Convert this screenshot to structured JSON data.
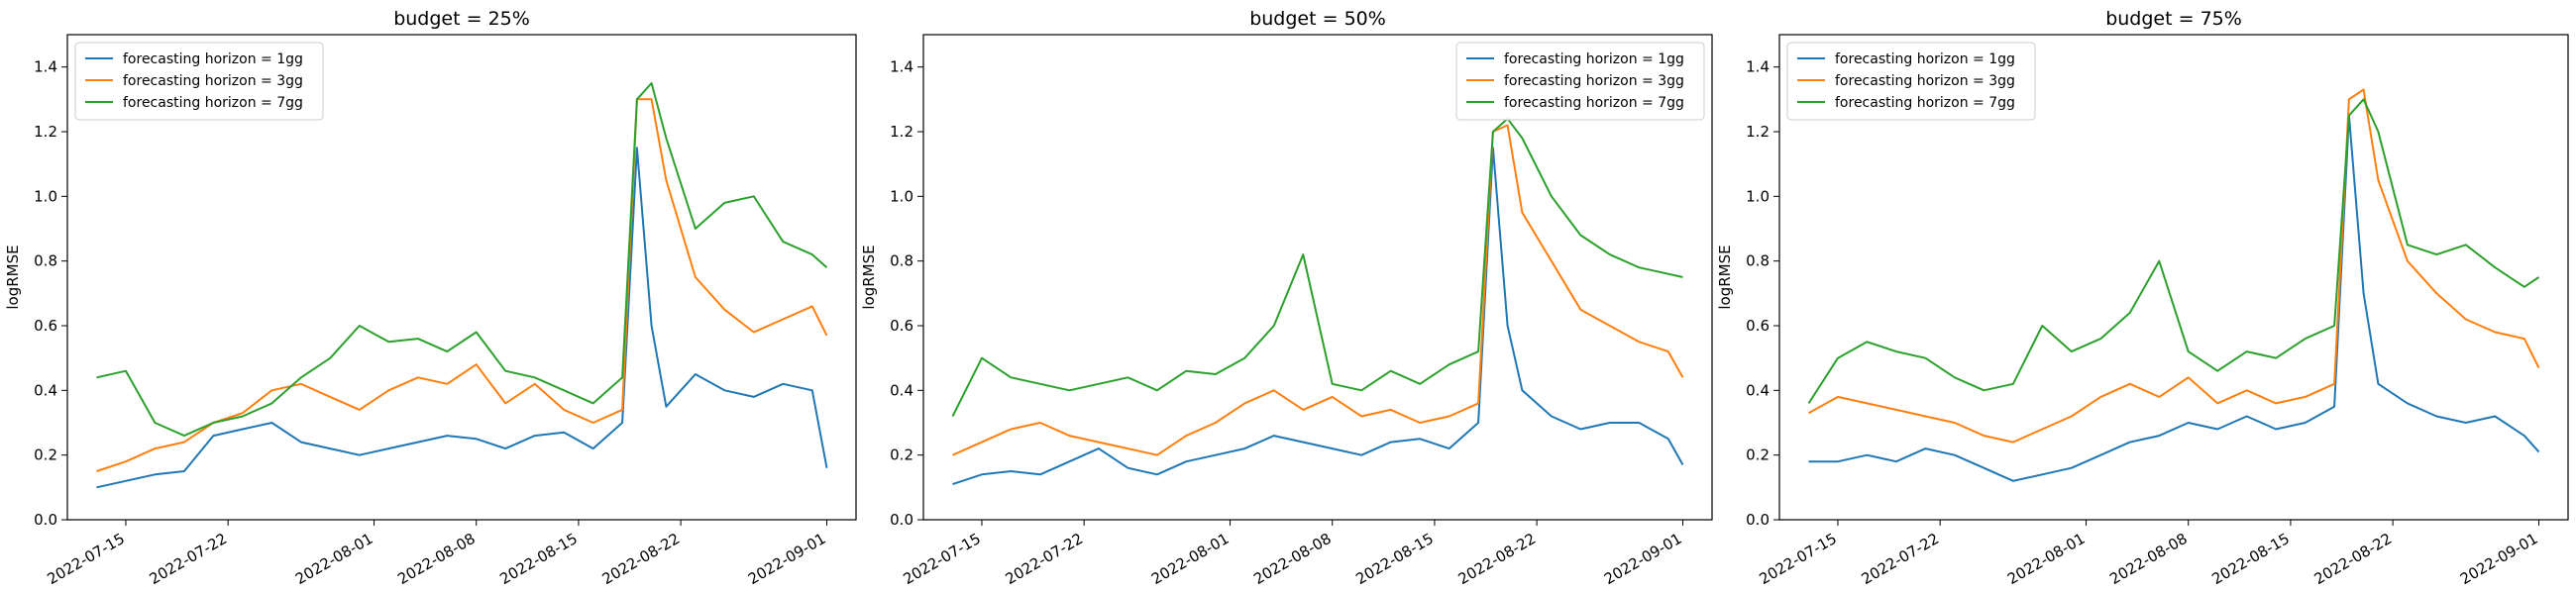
{
  "chart_data": [
    {
      "type": "line",
      "title": "budget = 25%",
      "xlabel": "",
      "ylabel": "logRMSE",
      "xlim": [
        "2022-07-11",
        "2022-09-03"
      ],
      "ylim": [
        0.0,
        1.5
      ],
      "yticks": [
        0.0,
        0.2,
        0.4,
        0.6,
        0.8,
        1.0,
        1.2,
        1.4
      ],
      "xticks": [
        "2022-07-15",
        "2022-07-22",
        "2022-08-01",
        "2022-08-08",
        "2022-08-15",
        "2022-08-22",
        "2022-09-01"
      ],
      "grid": false,
      "legend_position": "top-left",
      "series": [
        {
          "name": "forecasting horizon = 1gg",
          "color": "#1f77b4",
          "x": [
            "2022-07-13",
            "2022-07-15",
            "2022-07-17",
            "2022-07-19",
            "2022-07-21",
            "2022-07-23",
            "2022-07-25",
            "2022-07-27",
            "2022-07-29",
            "2022-07-31",
            "2022-08-02",
            "2022-08-04",
            "2022-08-06",
            "2022-08-08",
            "2022-08-10",
            "2022-08-12",
            "2022-08-14",
            "2022-08-16",
            "2022-08-18",
            "2022-08-19",
            "2022-08-20",
            "2022-08-21",
            "2022-08-23",
            "2022-08-25",
            "2022-08-27",
            "2022-08-29",
            "2022-08-31",
            "2022-09-01"
          ],
          "y": [
            0.1,
            0.12,
            0.14,
            0.15,
            0.26,
            0.28,
            0.3,
            0.24,
            0.22,
            0.2,
            0.22,
            0.24,
            0.26,
            0.25,
            0.22,
            0.26,
            0.27,
            0.22,
            0.3,
            1.15,
            0.6,
            0.35,
            0.45,
            0.4,
            0.38,
            0.42,
            0.4,
            0.16
          ]
        },
        {
          "name": "forecasting horizon = 3gg",
          "color": "#ff7f0e",
          "x": [
            "2022-07-13",
            "2022-07-15",
            "2022-07-17",
            "2022-07-19",
            "2022-07-21",
            "2022-07-23",
            "2022-07-25",
            "2022-07-27",
            "2022-07-29",
            "2022-07-31",
            "2022-08-02",
            "2022-08-04",
            "2022-08-06",
            "2022-08-08",
            "2022-08-10",
            "2022-08-12",
            "2022-08-14",
            "2022-08-16",
            "2022-08-18",
            "2022-08-19",
            "2022-08-20",
            "2022-08-21",
            "2022-08-23",
            "2022-08-25",
            "2022-08-27",
            "2022-08-29",
            "2022-08-31",
            "2022-09-01"
          ],
          "y": [
            0.15,
            0.18,
            0.22,
            0.24,
            0.3,
            0.33,
            0.4,
            0.42,
            0.38,
            0.34,
            0.4,
            0.44,
            0.42,
            0.48,
            0.36,
            0.42,
            0.34,
            0.3,
            0.34,
            1.3,
            1.3,
            1.05,
            0.75,
            0.65,
            0.58,
            0.62,
            0.66,
            0.57
          ]
        },
        {
          "name": "forecasting horizon = 7gg",
          "color": "#2ca02c",
          "x": [
            "2022-07-13",
            "2022-07-15",
            "2022-07-17",
            "2022-07-19",
            "2022-07-21",
            "2022-07-23",
            "2022-07-25",
            "2022-07-27",
            "2022-07-29",
            "2022-07-31",
            "2022-08-02",
            "2022-08-04",
            "2022-08-06",
            "2022-08-08",
            "2022-08-10",
            "2022-08-12",
            "2022-08-14",
            "2022-08-16",
            "2022-08-18",
            "2022-08-19",
            "2022-08-20",
            "2022-08-21",
            "2022-08-23",
            "2022-08-25",
            "2022-08-27",
            "2022-08-29",
            "2022-08-31",
            "2022-09-01"
          ],
          "y": [
            0.44,
            0.46,
            0.3,
            0.26,
            0.3,
            0.32,
            0.36,
            0.44,
            0.5,
            0.6,
            0.55,
            0.56,
            0.52,
            0.58,
            0.46,
            0.44,
            0.4,
            0.36,
            0.44,
            1.3,
            1.35,
            1.18,
            0.9,
            0.98,
            1.0,
            0.86,
            0.82,
            0.78
          ]
        }
      ]
    },
    {
      "type": "line",
      "title": "budget = 50%",
      "xlabel": "",
      "ylabel": "logRMSE",
      "xlim": [
        "2022-07-11",
        "2022-09-03"
      ],
      "ylim": [
        0.0,
        1.5
      ],
      "yticks": [
        0.0,
        0.2,
        0.4,
        0.6,
        0.8,
        1.0,
        1.2,
        1.4
      ],
      "xticks": [
        "2022-07-15",
        "2022-07-22",
        "2022-08-01",
        "2022-08-08",
        "2022-08-15",
        "2022-08-22",
        "2022-09-01"
      ],
      "grid": false,
      "legend_position": "top-right",
      "series": [
        {
          "name": "forecasting horizon = 1gg",
          "color": "#1f77b4",
          "x": [
            "2022-07-13",
            "2022-07-15",
            "2022-07-17",
            "2022-07-19",
            "2022-07-21",
            "2022-07-23",
            "2022-07-25",
            "2022-07-27",
            "2022-07-29",
            "2022-07-31",
            "2022-08-02",
            "2022-08-04",
            "2022-08-06",
            "2022-08-08",
            "2022-08-10",
            "2022-08-12",
            "2022-08-14",
            "2022-08-16",
            "2022-08-18",
            "2022-08-19",
            "2022-08-20",
            "2022-08-21",
            "2022-08-23",
            "2022-08-25",
            "2022-08-27",
            "2022-08-29",
            "2022-08-31",
            "2022-09-01"
          ],
          "y": [
            0.11,
            0.14,
            0.15,
            0.14,
            0.18,
            0.22,
            0.16,
            0.14,
            0.18,
            0.2,
            0.22,
            0.26,
            0.24,
            0.22,
            0.2,
            0.24,
            0.25,
            0.22,
            0.3,
            1.15,
            0.6,
            0.4,
            0.32,
            0.28,
            0.3,
            0.3,
            0.25,
            0.17
          ]
        },
        {
          "name": "forecasting horizon = 3gg",
          "color": "#ff7f0e",
          "x": [
            "2022-07-13",
            "2022-07-15",
            "2022-07-17",
            "2022-07-19",
            "2022-07-21",
            "2022-07-23",
            "2022-07-25",
            "2022-07-27",
            "2022-07-29",
            "2022-07-31",
            "2022-08-02",
            "2022-08-04",
            "2022-08-06",
            "2022-08-08",
            "2022-08-10",
            "2022-08-12",
            "2022-08-14",
            "2022-08-16",
            "2022-08-18",
            "2022-08-19",
            "2022-08-20",
            "2022-08-21",
            "2022-08-23",
            "2022-08-25",
            "2022-08-27",
            "2022-08-29",
            "2022-08-31",
            "2022-09-01"
          ],
          "y": [
            0.2,
            0.24,
            0.28,
            0.3,
            0.26,
            0.24,
            0.22,
            0.2,
            0.26,
            0.3,
            0.36,
            0.4,
            0.34,
            0.38,
            0.32,
            0.34,
            0.3,
            0.32,
            0.36,
            1.2,
            1.22,
            0.95,
            0.8,
            0.65,
            0.6,
            0.55,
            0.52,
            0.44
          ]
        },
        {
          "name": "forecasting horizon = 7gg",
          "color": "#2ca02c",
          "x": [
            "2022-07-13",
            "2022-07-15",
            "2022-07-17",
            "2022-07-19",
            "2022-07-21",
            "2022-07-23",
            "2022-07-25",
            "2022-07-27",
            "2022-07-29",
            "2022-07-31",
            "2022-08-02",
            "2022-08-04",
            "2022-08-06",
            "2022-08-08",
            "2022-08-10",
            "2022-08-12",
            "2022-08-14",
            "2022-08-16",
            "2022-08-18",
            "2022-08-19",
            "2022-08-20",
            "2022-08-21",
            "2022-08-23",
            "2022-08-25",
            "2022-08-27",
            "2022-08-29",
            "2022-08-31",
            "2022-09-01"
          ],
          "y": [
            0.32,
            0.5,
            0.44,
            0.42,
            0.4,
            0.42,
            0.44,
            0.4,
            0.46,
            0.45,
            0.5,
            0.6,
            0.82,
            0.42,
            0.4,
            0.46,
            0.42,
            0.48,
            0.52,
            1.2,
            1.24,
            1.18,
            1.0,
            0.88,
            0.82,
            0.78,
            0.76,
            0.75
          ]
        }
      ]
    },
    {
      "type": "line",
      "title": "budget = 75%",
      "xlabel": "",
      "ylabel": "logRMSE",
      "xlim": [
        "2022-07-11",
        "2022-09-03"
      ],
      "ylim": [
        0.0,
        1.5
      ],
      "yticks": [
        0.0,
        0.2,
        0.4,
        0.6,
        0.8,
        1.0,
        1.2,
        1.4
      ],
      "xticks": [
        "2022-07-15",
        "2022-07-22",
        "2022-08-01",
        "2022-08-08",
        "2022-08-15",
        "2022-08-22",
        "2022-09-01"
      ],
      "grid": false,
      "legend_position": "top-left",
      "series": [
        {
          "name": "forecasting horizon = 1gg",
          "color": "#1f77b4",
          "x": [
            "2022-07-13",
            "2022-07-15",
            "2022-07-17",
            "2022-07-19",
            "2022-07-21",
            "2022-07-23",
            "2022-07-25",
            "2022-07-27",
            "2022-07-29",
            "2022-07-31",
            "2022-08-02",
            "2022-08-04",
            "2022-08-06",
            "2022-08-08",
            "2022-08-10",
            "2022-08-12",
            "2022-08-14",
            "2022-08-16",
            "2022-08-18",
            "2022-08-19",
            "2022-08-20",
            "2022-08-21",
            "2022-08-23",
            "2022-08-25",
            "2022-08-27",
            "2022-08-29",
            "2022-08-31",
            "2022-09-01"
          ],
          "y": [
            0.18,
            0.18,
            0.2,
            0.18,
            0.22,
            0.2,
            0.16,
            0.12,
            0.14,
            0.16,
            0.2,
            0.24,
            0.26,
            0.3,
            0.28,
            0.32,
            0.28,
            0.3,
            0.35,
            1.25,
            0.7,
            0.42,
            0.36,
            0.32,
            0.3,
            0.32,
            0.26,
            0.21
          ]
        },
        {
          "name": "forecasting horizon = 3gg",
          "color": "#ff7f0e",
          "x": [
            "2022-07-13",
            "2022-07-15",
            "2022-07-17",
            "2022-07-19",
            "2022-07-21",
            "2022-07-23",
            "2022-07-25",
            "2022-07-27",
            "2022-07-29",
            "2022-07-31",
            "2022-08-02",
            "2022-08-04",
            "2022-08-06",
            "2022-08-08",
            "2022-08-10",
            "2022-08-12",
            "2022-08-14",
            "2022-08-16",
            "2022-08-18",
            "2022-08-19",
            "2022-08-20",
            "2022-08-21",
            "2022-08-23",
            "2022-08-25",
            "2022-08-27",
            "2022-08-29",
            "2022-08-31",
            "2022-09-01"
          ],
          "y": [
            0.33,
            0.38,
            0.36,
            0.34,
            0.32,
            0.3,
            0.26,
            0.24,
            0.28,
            0.32,
            0.38,
            0.42,
            0.38,
            0.44,
            0.36,
            0.4,
            0.36,
            0.38,
            0.42,
            1.3,
            1.33,
            1.05,
            0.8,
            0.7,
            0.62,
            0.58,
            0.56,
            0.47
          ]
        },
        {
          "name": "forecasting horizon = 7gg",
          "color": "#2ca02c",
          "x": [
            "2022-07-13",
            "2022-07-15",
            "2022-07-17",
            "2022-07-19",
            "2022-07-21",
            "2022-07-23",
            "2022-07-25",
            "2022-07-27",
            "2022-07-29",
            "2022-07-31",
            "2022-08-02",
            "2022-08-04",
            "2022-08-06",
            "2022-08-08",
            "2022-08-10",
            "2022-08-12",
            "2022-08-14",
            "2022-08-16",
            "2022-08-18",
            "2022-08-19",
            "2022-08-20",
            "2022-08-21",
            "2022-08-23",
            "2022-08-25",
            "2022-08-27",
            "2022-08-29",
            "2022-08-31",
            "2022-09-01"
          ],
          "y": [
            0.36,
            0.5,
            0.55,
            0.52,
            0.5,
            0.44,
            0.4,
            0.42,
            0.6,
            0.52,
            0.56,
            0.64,
            0.8,
            0.52,
            0.46,
            0.52,
            0.5,
            0.56,
            0.6,
            1.25,
            1.3,
            1.2,
            0.85,
            0.82,
            0.85,
            0.78,
            0.72,
            0.75
          ]
        }
      ]
    }
  ]
}
